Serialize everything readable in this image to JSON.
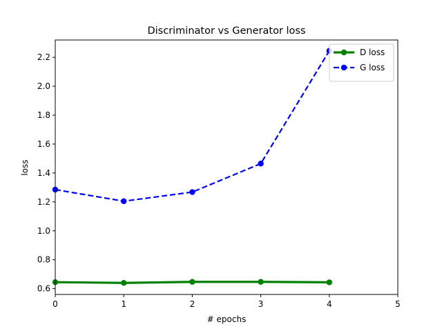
{
  "chart_data": {
    "type": "line",
    "title": "Discriminator vs Generator loss",
    "xlabel": "# epochs",
    "ylabel": "loss",
    "xlim": [
      0,
      5
    ],
    "ylim": [
      0.56,
      2.32
    ],
    "xticks": [
      0,
      1,
      2,
      3,
      4,
      5
    ],
    "yticks": [
      0.6,
      0.8,
      1.0,
      1.2,
      1.4,
      1.6,
      1.8,
      2.0,
      2.2
    ],
    "ytick_labels": [
      "0.6",
      "0.8",
      "1.0",
      "1.2",
      "1.4",
      "1.6",
      "1.8",
      "2.0",
      "2.2"
    ],
    "xtick_labels": [
      "0",
      "1",
      "2",
      "3",
      "4",
      "5"
    ],
    "grid": false,
    "legend_position": "top-right",
    "series": [
      {
        "name": "D loss",
        "x": [
          0,
          1,
          2,
          3,
          4
        ],
        "values": [
          0.645,
          0.64,
          0.647,
          0.647,
          0.644
        ],
        "color": "#008000",
        "line_style": "solid",
        "marker": "circle"
      },
      {
        "name": "G loss",
        "x": [
          0,
          1,
          2,
          3,
          4
        ],
        "values": [
          1.285,
          1.205,
          1.268,
          1.465,
          2.245
        ],
        "color": "#0000ff",
        "line_style": "dashed",
        "marker": "circle"
      }
    ]
  }
}
